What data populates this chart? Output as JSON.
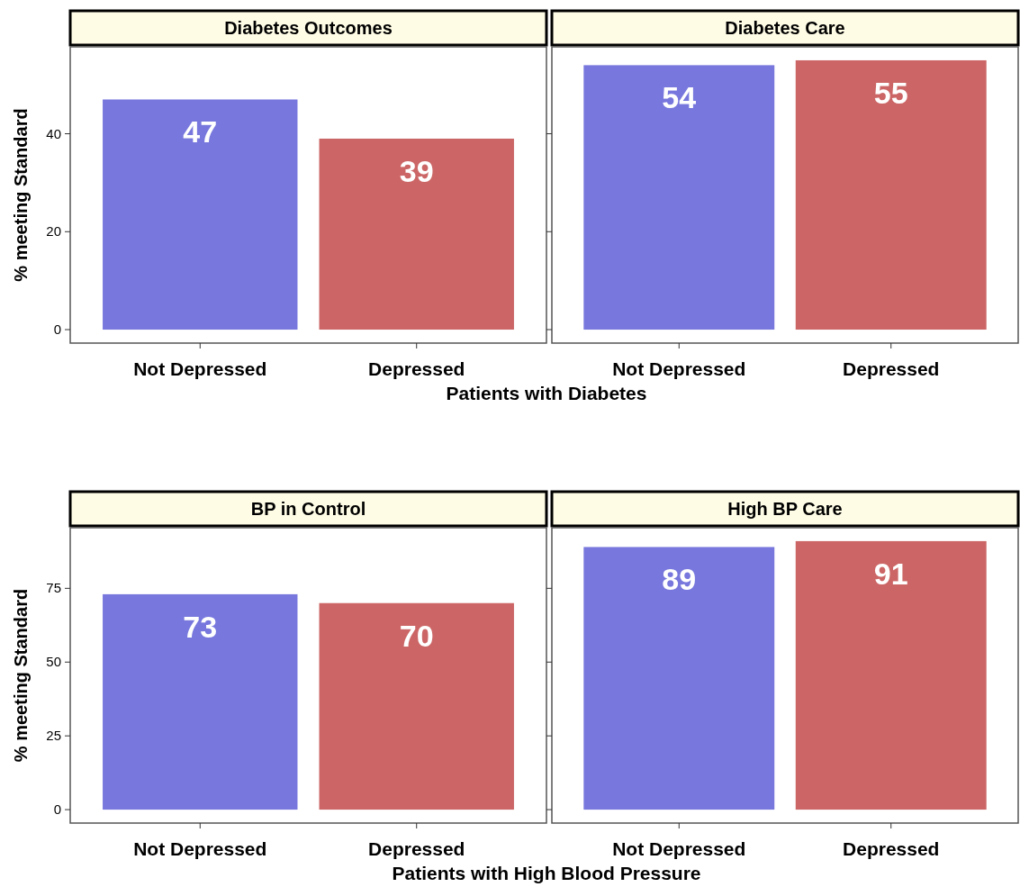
{
  "chart_data": [
    {
      "type": "bar",
      "title": "Diabetes Outcomes",
      "categories": [
        "Not Depressed",
        "Depressed"
      ],
      "values": [
        47,
        39
      ],
      "colors": [
        "#7777dd",
        "#cc6666"
      ],
      "ylim": [
        -2.75,
        57.75
      ],
      "yticks": [
        0,
        20,
        40
      ],
      "ylabel": "% meeting Standard",
      "xlabel": "Patients with Diabetes",
      "data_labels": true,
      "grid": false
    },
    {
      "type": "bar",
      "title": "Diabetes Care",
      "categories": [
        "Not Depressed",
        "Depressed"
      ],
      "values": [
        54,
        55
      ],
      "colors": [
        "#7777dd",
        "#cc6666"
      ],
      "ylim": [
        -2.75,
        57.75
      ],
      "yticks": [
        0,
        20,
        40
      ],
      "tick_labels": "x",
      "data_labels": true,
      "grid": false
    },
    {
      "type": "bar",
      "title": "BP in Control",
      "categories": [
        "Not Depressed",
        "Depressed"
      ],
      "values": [
        73,
        70
      ],
      "colors": [
        "#7777dd",
        "#cc6666"
      ],
      "ylim": [
        -4.55,
        95.55
      ],
      "yticks": [
        0,
        25,
        50,
        75
      ],
      "ylabel": "% meeting Standard",
      "xlabel": "Patients with High Blood Pressure",
      "data_labels": true,
      "grid": false
    },
    {
      "type": "bar",
      "title": "High BP Care",
      "categories": [
        "Not Depressed",
        "Depressed"
      ],
      "values": [
        89,
        91
      ],
      "colors": [
        "#7777dd",
        "#cc6666"
      ],
      "ylim": [
        -4.55,
        95.55
      ],
      "yticks": [
        0,
        25,
        50,
        75
      ],
      "tick_labels": "x",
      "data_labels": true,
      "grid": false
    }
  ]
}
